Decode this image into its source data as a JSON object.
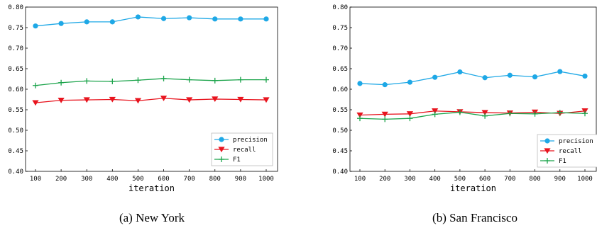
{
  "chart_data": [
    {
      "type": "line",
      "caption": "(a)  New York",
      "xlabel": "iteration",
      "ylabel": "",
      "x": [
        100,
        200,
        300,
        400,
        500,
        600,
        700,
        800,
        900,
        1000
      ],
      "xticks": [
        "100",
        "200",
        "300",
        "400",
        "500",
        "600",
        "700",
        "800",
        "900",
        "1000"
      ],
      "ylim": [
        0.4,
        0.8
      ],
      "yticks": [
        "0.40",
        "0.45",
        "0.50",
        "0.55",
        "0.60",
        "0.65",
        "0.70",
        "0.75",
        "0.80"
      ],
      "grid": false,
      "legend": "bottom-right",
      "series": [
        {
          "name": "precision",
          "color": "#1ea8e6",
          "marker": "circle",
          "values": [
            0.754,
            0.76,
            0.764,
            0.764,
            0.776,
            0.772,
            0.774,
            0.771,
            0.771,
            0.771
          ]
        },
        {
          "name": "recall",
          "color": "#e8141e",
          "marker": "triangle-down",
          "values": [
            0.567,
            0.573,
            0.574,
            0.575,
            0.572,
            0.578,
            0.574,
            0.576,
            0.575,
            0.574
          ]
        },
        {
          "name": "F1",
          "color": "#1aa34a",
          "marker": "plus",
          "values": [
            0.609,
            0.616,
            0.62,
            0.619,
            0.622,
            0.626,
            0.623,
            0.621,
            0.623,
            0.623
          ]
        }
      ]
    },
    {
      "type": "line",
      "caption": "(b)  San Francisco",
      "xlabel": "iteration",
      "ylabel": "",
      "x": [
        100,
        200,
        300,
        400,
        500,
        600,
        700,
        800,
        900,
        1000
      ],
      "xticks": [
        "100",
        "200",
        "300",
        "400",
        "500",
        "600",
        "700",
        "800",
        "900",
        "1000"
      ],
      "ylim": [
        0.4,
        0.8
      ],
      "yticks": [
        "0.40",
        "0.45",
        "0.50",
        "0.55",
        "0.60",
        "0.65",
        "0.70",
        "0.75",
        "0.80"
      ],
      "grid": false,
      "legend": "bottom-right",
      "series": [
        {
          "name": "precision",
          "color": "#1ea8e6",
          "marker": "circle",
          "values": [
            0.614,
            0.611,
            0.617,
            0.629,
            0.642,
            0.628,
            0.634,
            0.63,
            0.643,
            0.632
          ]
        },
        {
          "name": "recall",
          "color": "#e8141e",
          "marker": "triangle-down",
          "values": [
            0.537,
            0.539,
            0.54,
            0.547,
            0.545,
            0.543,
            0.542,
            0.544,
            0.541,
            0.547
          ]
        },
        {
          "name": "F1",
          "color": "#1aa34a",
          "marker": "plus",
          "values": [
            0.529,
            0.527,
            0.529,
            0.539,
            0.544,
            0.535,
            0.541,
            0.54,
            0.543,
            0.541
          ]
        }
      ]
    }
  ]
}
